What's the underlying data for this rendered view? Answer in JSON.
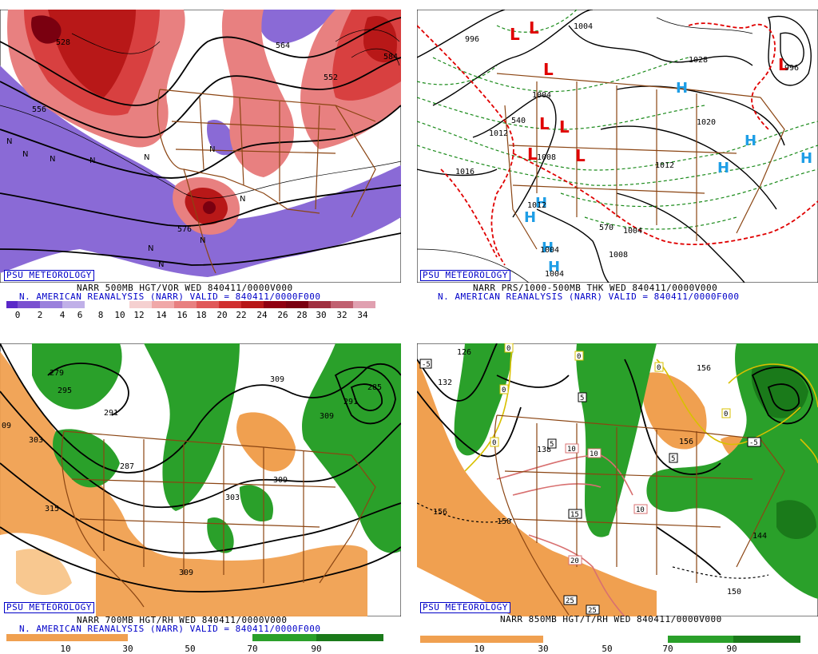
{
  "panels": {
    "vor500": {
      "brand": "PSU METEOROLOGY",
      "caption1": "NARR 500MB HGT/VOR WED 840411/0000V000",
      "caption2": "N. AMERICAN REANALYSIS (NARR) VALID = 840411/0000F000",
      "colorbar_ticks": [
        "0",
        "2",
        "4",
        "6",
        "8",
        "10",
        "12",
        "14",
        "16",
        "18",
        "20",
        "22",
        "24",
        "26",
        "28",
        "30",
        "32",
        "34"
      ],
      "contour_labels": [
        "528",
        "564",
        "552",
        "556",
        "576",
        "584"
      ],
      "colors": {
        "negative": "#8a6ad6",
        "positive": "#d84040",
        "max": "#7a0010"
      }
    },
    "thk": {
      "brand": "PSU METEOROLOGY",
      "caption1": "NARR PRS/1000-500MB THK WED 840411/0000V000",
      "caption2": "N. AMERICAN REANALYSIS (NARR) VALID = 840411/0000F000",
      "contour_labels": [
        "996",
        "1004",
        "1028",
        "1004",
        "1012",
        "1020",
        "1008",
        "1016",
        "1012",
        "1012",
        "1004",
        "1008",
        "996",
        "1004",
        "540",
        "570",
        "1004"
      ],
      "colors": {
        "low": "#e00000",
        "high": "#1e9ee6",
        "thickness": "#1a8a1a",
        "freezing": "#e00000"
      }
    },
    "rh700": {
      "brand": "PSU METEOROLOGY",
      "caption1": "NARR 700MB HGT/RH WED 840411/0000V000",
      "caption2": "N. AMERICAN REANALYSIS (NARR) VALID = 840411/0000F000",
      "colorbar_ticks": [
        "10",
        "30",
        "50",
        "70",
        "90"
      ],
      "contour_labels": [
        "279",
        "295",
        "291",
        "309",
        "309",
        "285",
        "291",
        "287",
        "303",
        "315",
        "303",
        "309",
        "309",
        "303"
      ],
      "colors": {
        "dry": "#f0a050",
        "moist": "#2aa02a"
      }
    },
    "t850": {
      "brand": "PSU METEOROLOGY",
      "caption1": "NARR 850MB HGT/T/RH WED 840411/0000V000",
      "colorbar_ticks": [
        "10",
        "30",
        "50",
        "70",
        "90"
      ],
      "contour_labels": [
        "126",
        "132",
        "156",
        "138",
        "156",
        "150",
        "144",
        "150",
        "156"
      ],
      "temp_labels": [
        "-5",
        "0",
        "0",
        "0",
        "0",
        "0",
        "5",
        "5",
        "10",
        "10",
        "10",
        "15",
        "20",
        "25",
        "25",
        "-5",
        "0",
        "5"
      ],
      "colors": {
        "dry": "#f0a050",
        "moist": "#2aa02a"
      }
    }
  }
}
